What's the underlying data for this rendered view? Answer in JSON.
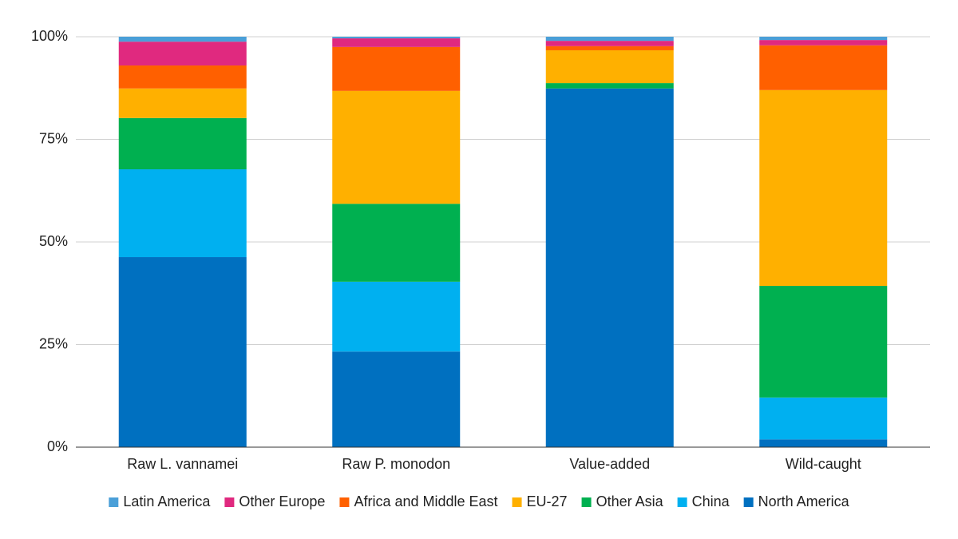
{
  "chart_data": {
    "type": "stacked-bar",
    "categories": [
      "Raw L. vannamei",
      "Raw P. monodon",
      "Value-added",
      "Wild-caught"
    ],
    "series": [
      {
        "name": "Latin America",
        "color": "#4a9fd8",
        "values": [
          1.2,
          0.4,
          1.0,
          0.8
        ]
      },
      {
        "name": "Other Europe",
        "color": "#e0297f",
        "values": [
          5.8,
          2.1,
          1.3,
          1.3
        ]
      },
      {
        "name": "Africa and Middle East",
        "color": "#ff6000",
        "values": [
          5.6,
          10.7,
          1.0,
          10.9
        ]
      },
      {
        "name": "EU-27",
        "color": "#ffb000",
        "values": [
          7.2,
          27.5,
          8.0,
          47.7
        ]
      },
      {
        "name": "Other Asia",
        "color": "#00b050",
        "values": [
          12.5,
          19.0,
          1.3,
          27.2
        ]
      },
      {
        "name": "China",
        "color": "#00b0f0",
        "values": [
          21.4,
          17.0,
          0,
          10.2
        ]
      },
      {
        "name": "North America",
        "color": "#0070c0",
        "values": [
          46.3,
          23.3,
          87.4,
          1.9
        ]
      }
    ],
    "ylim": [
      0,
      100
    ],
    "yticks": [
      {
        "value": 0,
        "label": "0%"
      },
      {
        "value": 25,
        "label": "25%"
      },
      {
        "value": 50,
        "label": "50%"
      },
      {
        "value": 75,
        "label": "75%"
      },
      {
        "value": 100,
        "label": "100%"
      }
    ],
    "grid": true,
    "legend": "bottom"
  }
}
